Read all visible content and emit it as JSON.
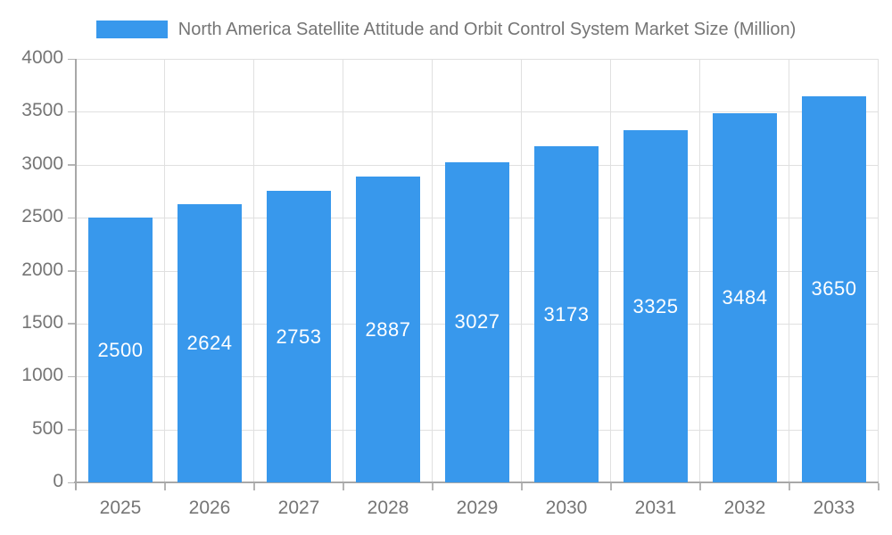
{
  "legend": {
    "label": "North America Satellite Attitude and Orbit Control System Market Size (Million)"
  },
  "chart_data": {
    "type": "bar",
    "title": "North America Satellite Attitude and Orbit Control System Market Size (Million)",
    "categories": [
      "2025",
      "2026",
      "2027",
      "2028",
      "2029",
      "2030",
      "2031",
      "2032",
      "2033"
    ],
    "values": [
      2500,
      2624,
      2753,
      2887,
      3027,
      3173,
      3325,
      3484,
      3650
    ],
    "xlabel": "",
    "ylabel": "",
    "ylim": [
      0,
      4000
    ],
    "ytick_step": 500,
    "ytick_labels": [
      "0",
      "500",
      "1000",
      "1500",
      "2000",
      "2500",
      "3000",
      "3500",
      "4000"
    ],
    "grid": true,
    "legend_position": "top",
    "value_labels": "inside-center",
    "colors": {
      "bar": "#3898EC",
      "value_label": "#ffffff",
      "axis_text": "#757575",
      "grid_line": "#e0e0e0",
      "axis_line": "#a8a8a8",
      "tick": "#b5b5b5",
      "background": "#ffffff"
    }
  }
}
